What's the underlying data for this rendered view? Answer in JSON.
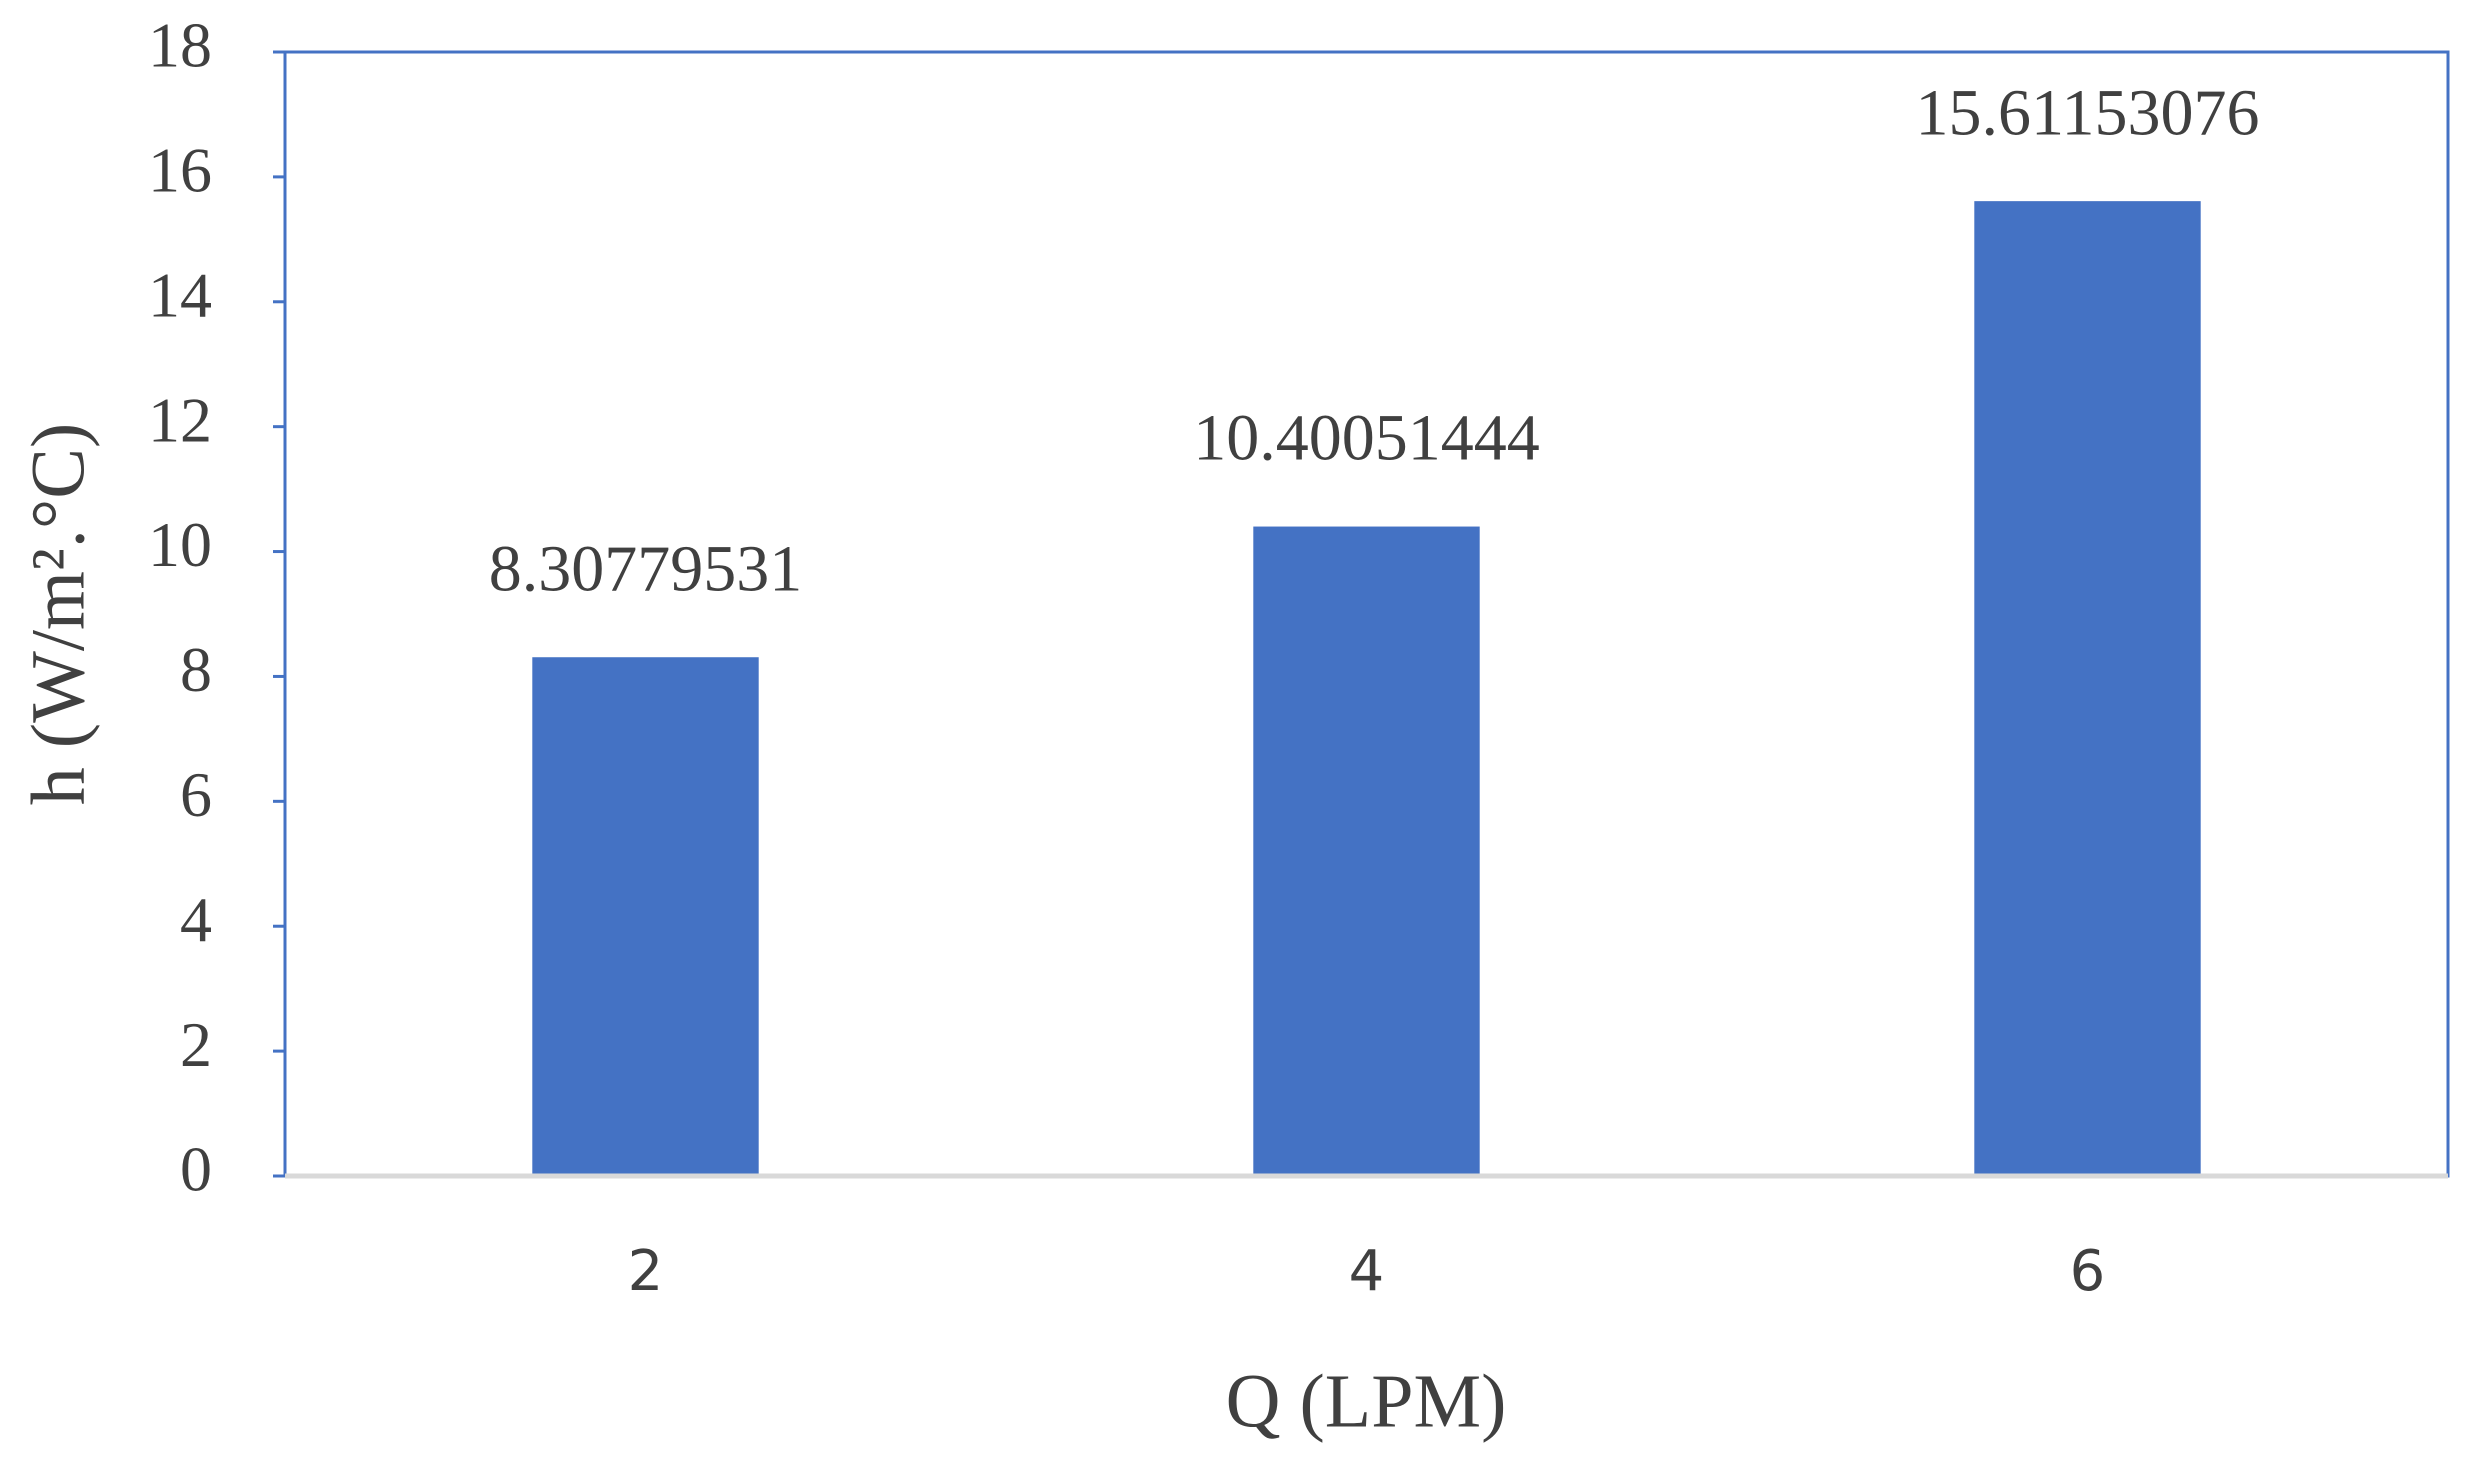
{
  "chart_data": {
    "type": "bar",
    "x_label": "Q (LPM)",
    "y_label": "h (W/m².°C)",
    "categories": [
      "2",
      "4",
      "6"
    ],
    "values": [
      8.30779531,
      10.40051444,
      15.61153076
    ],
    "color": "#4472c4",
    "ylim": [
      0,
      18
    ],
    "yticks": [
      0,
      2,
      4,
      6,
      8,
      10,
      12,
      14,
      16,
      18
    ],
    "grid": false
  }
}
